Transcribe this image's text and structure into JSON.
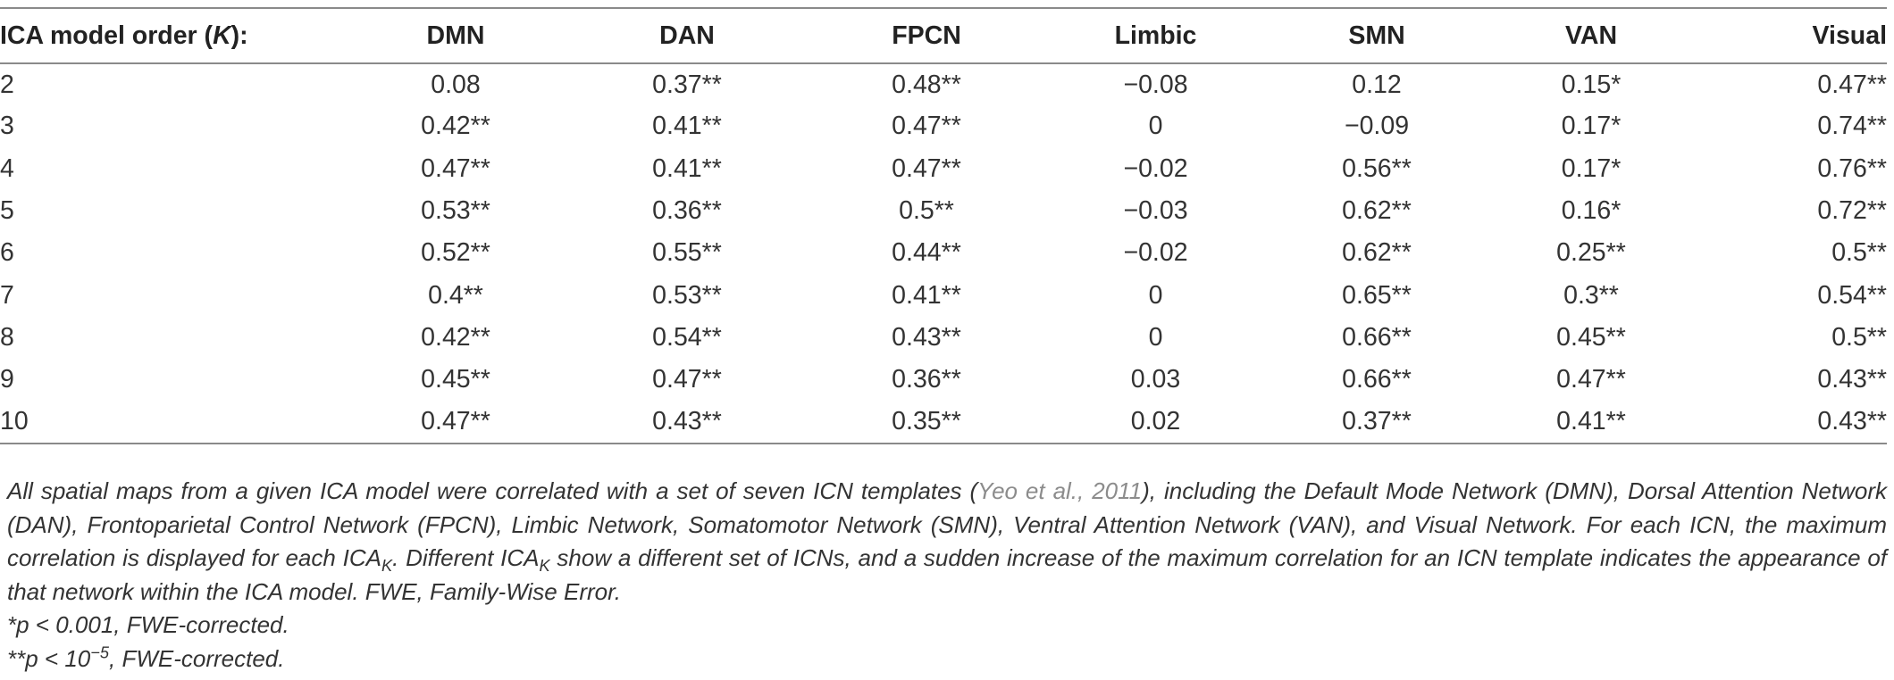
{
  "table": {
    "header": {
      "label_prefix": "ICA model order (",
      "label_var": "K",
      "label_suffix": "):",
      "columns": [
        "DMN",
        "DAN",
        "FPCN",
        "Limbic",
        "SMN",
        "VAN",
        "Visual"
      ]
    },
    "rows": [
      {
        "k": "2",
        "cells": [
          "0.08",
          "0.37**",
          "0.48**",
          "−0.08",
          "0.12",
          "0.15*",
          "0.47**"
        ]
      },
      {
        "k": "3",
        "cells": [
          "0.42**",
          "0.41**",
          "0.47**",
          "0",
          "−0.09",
          "0.17*",
          "0.74**"
        ]
      },
      {
        "k": "4",
        "cells": [
          "0.47**",
          "0.41**",
          "0.47**",
          "−0.02",
          "0.56**",
          "0.17*",
          "0.76**"
        ]
      },
      {
        "k": "5",
        "cells": [
          "0.53**",
          "0.36**",
          "0.5**",
          "−0.03",
          "0.62**",
          "0.16*",
          "0.72**"
        ]
      },
      {
        "k": "6",
        "cells": [
          "0.52**",
          "0.55**",
          "0.44**",
          "−0.02",
          "0.62**",
          "0.25**",
          "0.5**"
        ]
      },
      {
        "k": "7",
        "cells": [
          "0.4**",
          "0.53**",
          "0.41**",
          "0",
          "0.65**",
          "0.3**",
          "0.54**"
        ]
      },
      {
        "k": "8",
        "cells": [
          "0.42**",
          "0.54**",
          "0.43**",
          "0",
          "0.66**",
          "0.45**",
          "0.5**"
        ]
      },
      {
        "k": "9",
        "cells": [
          "0.45**",
          "0.47**",
          "0.36**",
          "0.03",
          "0.66**",
          "0.47**",
          "0.43**"
        ]
      },
      {
        "k": "10",
        "cells": [
          "0.47**",
          "0.43**",
          "0.35**",
          "0.02",
          "0.37**",
          "0.41**",
          "0.43**"
        ]
      }
    ]
  },
  "footnote": {
    "main_before_cite": "All spatial maps from a given ICA model were correlated with a set of seven ICN templates (",
    "citation": "Yeo et al., 2011",
    "main_after_cite": "), including the Default Mode Network (DMN), Dorsal Attention Network (DAN), Frontoparietal Control Network (FPCN), Limbic Network, Somatomotor Network (SMN), Ventral Attention Network (VAN), and Visual Network. For each ICN, the maximum correlation is displayed for each ",
    "ica_base_1": "ICA",
    "ica_sub_1": "K",
    "mid_text": ". Different ",
    "ica_base_2": "ICA",
    "ica_sub_2": "K",
    "end_text": " show a different set of ICNs, and a sudden increase of the maximum correlation for an ICN template indicates the appearance of that network within the ICA model. FWE, Family-Wise Error.",
    "note1": "*p < 0.001, FWE-corrected.",
    "note2_prefix": "**p < 10",
    "note2_exp": "−5",
    "note2_suffix": ", FWE-corrected."
  }
}
